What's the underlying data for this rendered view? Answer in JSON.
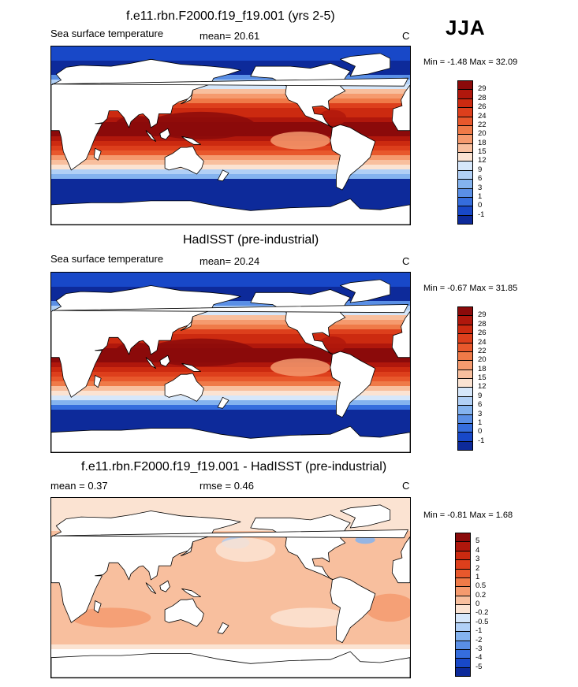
{
  "season": "JJA",
  "panels": [
    {
      "title": "f.e11.rbn.F2000.f19_f19.001 (yrs 2-5)",
      "left_label": "Sea surface temperature",
      "mean_text": "mean=  20.61",
      "units": "C",
      "minmax": "Min =  -1.48 Max =  32.09",
      "kind": "sst"
    },
    {
      "title": "HadISST (pre-industrial)",
      "left_label": "Sea surface temperature",
      "mean_text": "mean=  20.24",
      "units": "C",
      "minmax": "Min =  -0.67 Max =  31.85",
      "kind": "sst"
    },
    {
      "title": "f.e11.rbn.F2000.f19_f19.001 - HadISST (pre-industrial)",
      "left_label": "mean =   0.37",
      "mean_text": "rmse =   0.46",
      "units": "C",
      "minmax": "Min =  -0.81 Max =   1.68",
      "kind": "diff"
    }
  ],
  "colorbars": {
    "sst": {
      "labels": [
        "29",
        "28",
        "26",
        "24",
        "22",
        "20",
        "18",
        "15",
        "12",
        "9",
        "6",
        "3",
        "1",
        "0",
        "-1"
      ],
      "colors": [
        "#8b0a0a",
        "#b0170c",
        "#cc2a10",
        "#dd3f1c",
        "#e8582c",
        "#ef7a48",
        "#f59a6e",
        "#f8bf9e",
        "#fbe3d2",
        "#d6e7fa",
        "#b1d0f6",
        "#84b3ef",
        "#5a8fe6",
        "#356ddd",
        "#1848c8",
        "#0d2a9a"
      ]
    },
    "diff": {
      "labels": [
        "5",
        "4",
        "3",
        "2",
        "1",
        "0.5",
        "0.2",
        "0",
        "-0.2",
        "-0.5",
        "-1",
        "-2",
        "-3",
        "-4",
        "-5"
      ],
      "colors": [
        "#8b0a0a",
        "#b0170c",
        "#cc2a10",
        "#dd3f1c",
        "#e8582c",
        "#ef7a48",
        "#f59a6e",
        "#f8bf9e",
        "#fbe3d2",
        "#d6e7fa",
        "#b1d0f6",
        "#84b3ef",
        "#5a8fe6",
        "#356ddd",
        "#1848c8",
        "#0d2a9a"
      ]
    }
  }
}
